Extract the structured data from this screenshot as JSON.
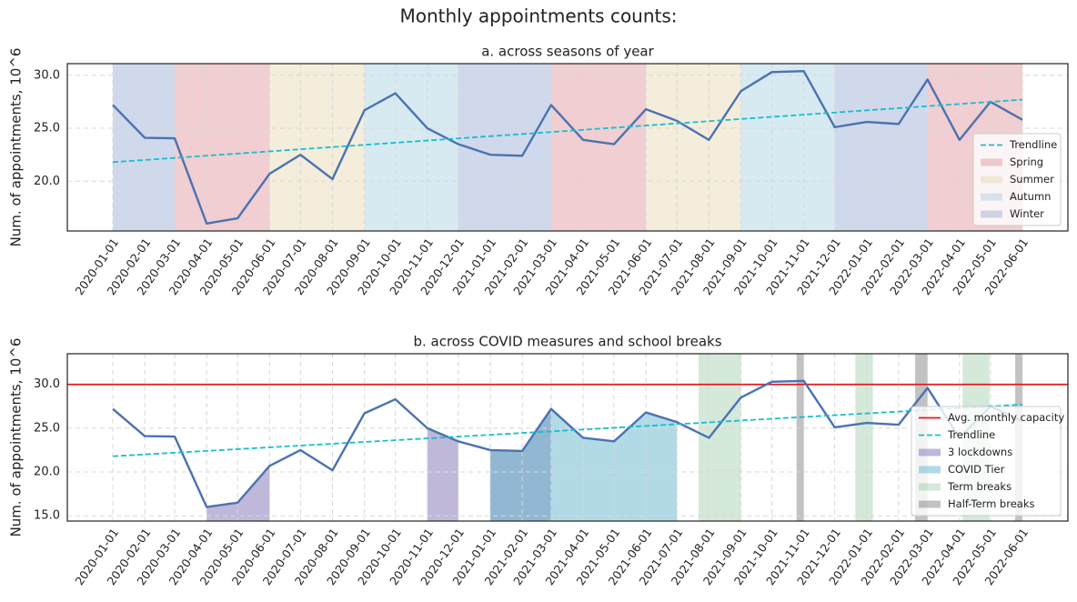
{
  "title": "Monthly appointments counts:",
  "chart_data": [
    {
      "type": "line",
      "title": "a. across seasons of year",
      "ylabel": "Num. of appointments, 10^6",
      "x": [
        "2020-01-01",
        "2020-02-01",
        "2020-03-01",
        "2020-04-01",
        "2020-05-01",
        "2020-06-01",
        "2020-07-01",
        "2020-08-01",
        "2020-09-01",
        "2020-10-01",
        "2020-11-01",
        "2020-12-01",
        "2021-01-01",
        "2021-02-01",
        "2021-03-01",
        "2021-04-01",
        "2021-05-01",
        "2021-06-01",
        "2021-07-01",
        "2021-08-01",
        "2021-09-01",
        "2021-10-01",
        "2021-11-01",
        "2021-12-01",
        "2022-01-01",
        "2022-02-01",
        "2022-03-01",
        "2022-04-01",
        "2022-05-01",
        "2022-06-01"
      ],
      "ylim": [
        15.3,
        31.1
      ],
      "yticks": [
        {
          "value": 20,
          "label": "20.0"
        },
        {
          "value": 25,
          "label": "25.0"
        },
        {
          "value": 30,
          "label": "30.0"
        }
      ],
      "grid": true,
      "legend": "lower right",
      "series": [
        {
          "color": "#4c72b0",
          "values": [
            27.2,
            24.1,
            24.05,
            16.0,
            16.5,
            20.7,
            22.5,
            20.2,
            26.7,
            28.3,
            25.0,
            23.5,
            22.5,
            22.4,
            27.2,
            23.9,
            23.5,
            26.8,
            25.7,
            23.9,
            28.5,
            30.3,
            30.4,
            25.1,
            25.6,
            25.4,
            29.6,
            23.9,
            27.5,
            25.8
          ]
        },
        {
          "name": "Trendline",
          "color": "#17becf",
          "style": "dashed",
          "x": [
            "2020-01-01",
            "2022-06-01"
          ],
          "values": [
            21.8,
            27.7
          ]
        }
      ],
      "spans": [
        {
          "name": "Spring",
          "color": "rgba(221,132,140,0.4)",
          "fill": "full",
          "ranges": [
            [
              "2020-03-01",
              "2020-06-01"
            ],
            [
              "2021-03-01",
              "2021-06-01"
            ],
            [
              "2022-03-01",
              "2022-06-01"
            ]
          ]
        },
        {
          "name": "Summer",
          "color": "rgba(230,214,175,0.45)",
          "fill": "full",
          "ranges": [
            [
              "2020-06-01",
              "2020-09-01"
            ],
            [
              "2021-06-01",
              "2021-09-01"
            ]
          ]
        },
        {
          "name": "Autumn",
          "color": "rgba(160,206,222,0.42)",
          "fill": "full",
          "ranges": [
            [
              "2020-09-01",
              "2020-12-01"
            ],
            [
              "2021-09-01",
              "2021-12-01"
            ]
          ]
        },
        {
          "name": "Winter",
          "color": "rgba(150,170,210,0.45)",
          "fill": "full",
          "ranges": [
            [
              "2020-01-01",
              "2020-03-01"
            ],
            [
              "2020-12-01",
              "2021-03-01"
            ],
            [
              "2021-12-01",
              "2022-03-01"
            ]
          ]
        }
      ]
    },
    {
      "type": "line",
      "title": "b. across COVID measures and school breaks",
      "ylabel": "Num. of appointments, 10^6",
      "x": [
        "2020-01-01",
        "2020-02-01",
        "2020-03-01",
        "2020-04-01",
        "2020-05-01",
        "2020-06-01",
        "2020-07-01",
        "2020-08-01",
        "2020-09-01",
        "2020-10-01",
        "2020-11-01",
        "2020-12-01",
        "2021-01-01",
        "2021-02-01",
        "2021-03-01",
        "2021-04-01",
        "2021-05-01",
        "2021-06-01",
        "2021-07-01",
        "2021-08-01",
        "2021-09-01",
        "2021-10-01",
        "2021-11-01",
        "2021-12-01",
        "2022-01-01",
        "2022-02-01",
        "2022-03-01",
        "2022-04-01",
        "2022-05-01",
        "2022-06-01"
      ],
      "ylim": [
        14.4,
        33.5
      ],
      "yticks": [
        {
          "value": 15,
          "label": "15.0"
        },
        {
          "value": 20,
          "label": "20.0"
        },
        {
          "value": 25,
          "label": "25.0"
        },
        {
          "value": 30,
          "label": "30.0"
        }
      ],
      "grid": true,
      "legend": "lower right",
      "hlines": [
        {
          "name": "Avg. monthly capacity",
          "value": 30,
          "color": "#e41a1c"
        }
      ],
      "series": [
        {
          "color": "#4c72b0",
          "values": [
            27.2,
            24.1,
            24.05,
            16.0,
            16.5,
            20.7,
            22.5,
            20.2,
            26.7,
            28.3,
            25.0,
            23.5,
            22.5,
            22.4,
            27.2,
            23.9,
            23.5,
            26.8,
            25.7,
            23.9,
            28.5,
            30.3,
            30.4,
            25.1,
            25.6,
            25.4,
            29.6,
            23.9,
            27.5,
            25.8
          ]
        },
        {
          "name": "Trendline",
          "color": "#17becf",
          "style": "dashed",
          "x": [
            "2020-01-01",
            "2022-06-01"
          ],
          "values": [
            21.8,
            27.7
          ]
        }
      ],
      "spans": [
        {
          "name": "3 lockdowns",
          "color": "rgba(129,114,179,0.5)",
          "fill": "under-line",
          "ranges": [
            [
              "2020-04-01",
              "2020-06-01"
            ],
            [
              "2020-11-01",
              "2020-12-01"
            ],
            [
              "2021-01-01",
              "2021-03-01"
            ]
          ]
        },
        {
          "name": "COVID Tier",
          "color": "rgba(100,181,205,0.5)",
          "fill": "under-line",
          "ranges": [
            [
              "2021-01-01",
              "2021-07-01"
            ]
          ]
        },
        {
          "name": "Term breaks",
          "color": "rgba(85,168,104,0.25)",
          "fill": "full",
          "ranges": [
            [
              "2021-07-22",
              "2021-09-01"
            ],
            [
              "2021-12-21",
              "2022-01-07"
            ],
            [
              "2022-04-04",
              "2022-04-30"
            ]
          ]
        },
        {
          "name": "Half-Term breaks",
          "color": "rgba(120,120,120,0.45)",
          "fill": "full",
          "ranges": [
            [
              "2021-10-25",
              "2021-11-01"
            ],
            [
              "2022-02-17",
              "2022-03-01"
            ],
            [
              "2022-05-25",
              "2022-06-01"
            ]
          ]
        }
      ]
    }
  ]
}
